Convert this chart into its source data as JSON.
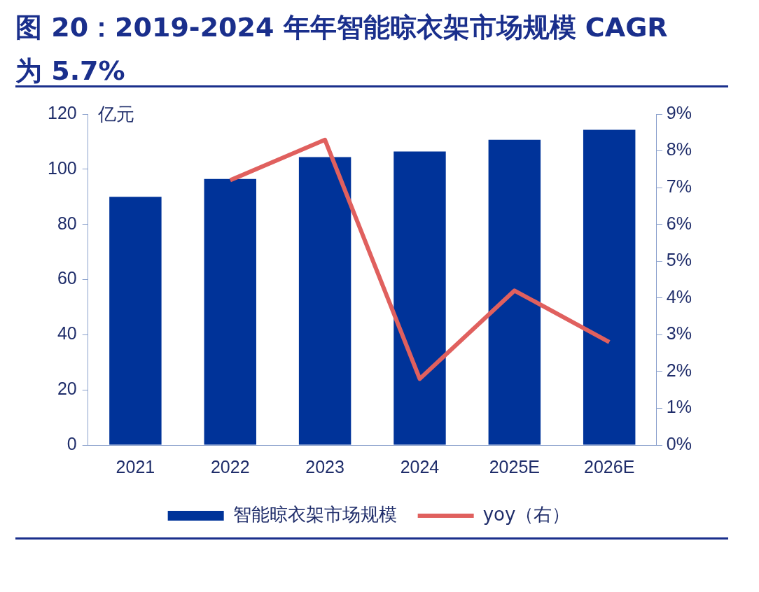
{
  "chart_data": {
    "type": "bar",
    "title": "图  20：2019-2024 年年智能晾衣架市场规模 CAGR 为 5.7%",
    "ylabel": "亿元",
    "categories": [
      "2021",
      "2022",
      "2023",
      "2024",
      "2025E",
      "2026E"
    ],
    "series": [
      {
        "name": "智能晾衣架市场规模",
        "color": "#003399",
        "values": [
          90.0,
          96.5,
          104.4,
          106.4,
          110.7,
          114.3
        ]
      },
      {
        "name": "yoy（右）",
        "type": "line",
        "axis": "y2",
        "color": "#e0605e",
        "values": [
          null,
          7.2,
          8.3,
          1.8,
          4.2,
          2.8
        ]
      }
    ],
    "ylim": [
      0,
      120
    ],
    "yticks": [
      0,
      20,
      40,
      60,
      80,
      100,
      120
    ],
    "y2lim": [
      0,
      9
    ],
    "y2ticks": [
      {
        "value": 0,
        "label": "0%"
      },
      {
        "value": 1,
        "label": "1%"
      },
      {
        "value": 2,
        "label": "2%"
      },
      {
        "value": 3,
        "label": "3%"
      },
      {
        "value": 4,
        "label": "4%"
      },
      {
        "value": 5,
        "label": "5%"
      },
      {
        "value": 6,
        "label": "6%"
      },
      {
        "value": 7,
        "label": "7%"
      },
      {
        "value": 8,
        "label": "8%"
      },
      {
        "value": 9,
        "label": "9%"
      }
    ],
    "grid": false,
    "legend": "bottom",
    "marker": "none"
  }
}
